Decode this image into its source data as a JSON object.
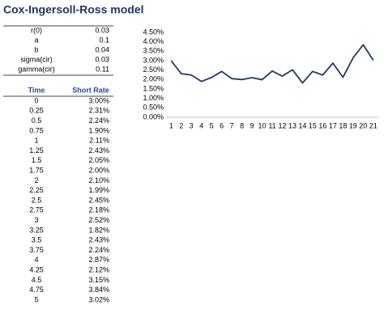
{
  "header": {
    "title": "Cox-Ingersoll-Ross model"
  },
  "params": {
    "rows": [
      [
        "r(0)",
        "0.03"
      ],
      [
        "a",
        "0.1"
      ],
      [
        "b",
        "0.04"
      ],
      [
        "sigma(cir)",
        "0.03"
      ],
      [
        "gamma(cir)",
        "0.11"
      ]
    ]
  },
  "rates": {
    "columns": [
      "Time",
      "Short Rate"
    ],
    "rows": [
      [
        "0",
        "3.00%"
      ],
      [
        "0.25",
        "2.31%"
      ],
      [
        "0.5",
        "2.24%"
      ],
      [
        "0.75",
        "1.90%"
      ],
      [
        "1",
        "2.11%"
      ],
      [
        "1.25",
        "2.43%"
      ],
      [
        "1.5",
        "2.05%"
      ],
      [
        "1.75",
        "2.00%"
      ],
      [
        "2",
        "2.10%"
      ],
      [
        "2.25",
        "1.99%"
      ],
      [
        "2.5",
        "2.45%"
      ],
      [
        "2.75",
        "2.18%"
      ],
      [
        "3",
        "2.52%"
      ],
      [
        "3.25",
        "1.82%"
      ],
      [
        "3.5",
        "2.43%"
      ],
      [
        "3.75",
        "2.24%"
      ],
      [
        "4",
        "2.87%"
      ],
      [
        "4.25",
        "2.12%"
      ],
      [
        "4.5",
        "3.15%"
      ],
      [
        "4.75",
        "3.84%"
      ],
      [
        "5",
        "3.02%"
      ]
    ]
  },
  "chart_data": {
    "type": "line",
    "color": "#1f3864",
    "categories": [
      "1",
      "2",
      "3",
      "4",
      "5",
      "6",
      "7",
      "8",
      "9",
      "10",
      "11",
      "12",
      "13",
      "14",
      "15",
      "16",
      "17",
      "18",
      "19",
      "20",
      "21"
    ],
    "values": [
      3.0,
      2.31,
      2.24,
      1.9,
      2.11,
      2.43,
      2.05,
      2.0,
      2.1,
      1.99,
      2.45,
      2.18,
      2.52,
      1.82,
      2.43,
      2.24,
      2.87,
      2.12,
      3.15,
      3.84,
      3.02
    ],
    "ylim": [
      0,
      4.5
    ],
    "yticks": [
      {
        "value": 0,
        "label": "0.00%"
      },
      {
        "value": 0.5,
        "label": "0.50%"
      },
      {
        "value": 1,
        "label": "1.00%"
      },
      {
        "value": 1.5,
        "label": "1.50%"
      },
      {
        "value": 2,
        "label": "2.00%"
      },
      {
        "value": 2.5,
        "label": "2.50%"
      },
      {
        "value": 3,
        "label": "3.00%"
      },
      {
        "value": 3.5,
        "label": "3.50%"
      },
      {
        "value": 4,
        "label": "4.00%"
      },
      {
        "value": 4.5,
        "label": "4.50%"
      }
    ]
  }
}
